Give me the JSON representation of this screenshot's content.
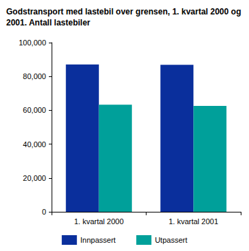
{
  "chart_data": {
    "type": "bar",
    "title": "Godstransport med lastebil over grensen, 1. kvartal 2000 og 2001. Antall lastebiler",
    "categories": [
      "1. kvartal 2000",
      "1. kvartal 2001"
    ],
    "series": [
      {
        "name": "Innpassert",
        "color": "#0a2f9c",
        "values": [
          87100,
          86900
        ]
      },
      {
        "name": "Utpassert",
        "color": "#00a09a",
        "values": [
          63300,
          62600
        ]
      }
    ],
    "ylim": [
      0,
      100000
    ],
    "yticks": [
      0,
      20000,
      40000,
      60000,
      80000,
      100000
    ],
    "grid": false,
    "legend": "bottom"
  }
}
